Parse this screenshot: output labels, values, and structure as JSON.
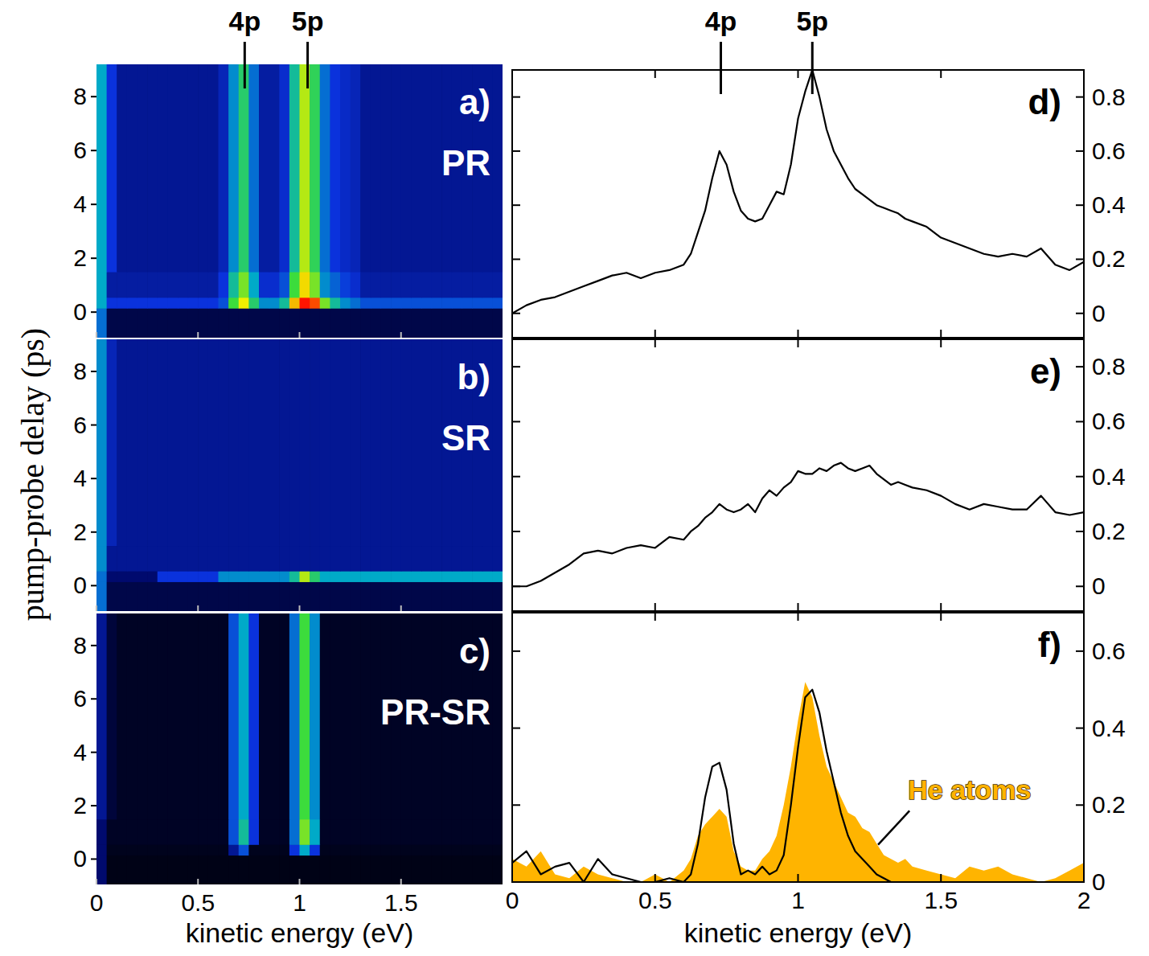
{
  "chart_data": [
    {
      "type": "heatmap",
      "panel_label": "a)",
      "title": "PR",
      "y_label": "pump-probe delay (ps)",
      "markers": [
        {
          "label": "4p",
          "value": 0.73
        },
        {
          "label": "5p",
          "value": 1.04
        }
      ],
      "xlim": [
        0,
        2
      ],
      "ylim": [
        -0.95,
        9.2
      ],
      "xticks": [
        0,
        0.5,
        1,
        1.5
      ],
      "yticks": [
        0,
        2,
        4,
        6,
        8
      ],
      "tick_labels": "y",
      "x_edges": [
        0,
        0.05,
        0.1,
        0.15,
        0.2,
        0.25,
        0.3,
        0.35,
        0.4,
        0.45,
        0.5,
        0.55,
        0.6,
        0.65,
        0.7,
        0.75,
        0.8,
        0.85,
        0.9,
        0.95,
        1,
        1.05,
        1.1,
        1.15,
        1.2,
        1.25,
        1.3,
        1.35,
        1.4,
        1.45,
        1.5,
        1.55,
        1.6,
        1.65,
        1.7,
        1.75,
        1.8,
        1.85,
        1.9,
        1.95,
        2
      ],
      "y_edges": [
        -0.95,
        0.15,
        0.55,
        1.5,
        9.2
      ],
      "zlim": [
        0,
        1
      ],
      "cells": [
        [
          0.4,
          0.1,
          0.1,
          0.1,
          0.1,
          0.1,
          0.1,
          0.1,
          0.1,
          0.1,
          0.1,
          0.1,
          0.1,
          0.1,
          0.1,
          0.1,
          0.1,
          0.1,
          0.1,
          0.1,
          0.1,
          0.1,
          0.1,
          0.1,
          0.1,
          0.1,
          0.1,
          0.1,
          0.1,
          0.1,
          0.1,
          0.1,
          0.1,
          0.1,
          0.1,
          0.1,
          0.1,
          0.1,
          0.1,
          0.1
        ],
        [
          0.5,
          0.3,
          0.3,
          0.3,
          0.3,
          0.3,
          0.3,
          0.3,
          0.3,
          0.3,
          0.3,
          0.3,
          0.35,
          0.65,
          0.8,
          0.6,
          0.45,
          0.45,
          0.55,
          0.85,
          1.0,
          0.95,
          0.7,
          0.55,
          0.45,
          0.4,
          0.35,
          0.35,
          0.35,
          0.35,
          0.35,
          0.35,
          0.35,
          0.35,
          0.35,
          0.35,
          0.35,
          0.35,
          0.35,
          0.35
        ],
        [
          0.5,
          0.22,
          0.22,
          0.22,
          0.22,
          0.22,
          0.22,
          0.22,
          0.22,
          0.22,
          0.22,
          0.22,
          0.3,
          0.55,
          0.7,
          0.5,
          0.28,
          0.28,
          0.35,
          0.65,
          0.82,
          0.7,
          0.45,
          0.38,
          0.32,
          0.28,
          0.22,
          0.22,
          0.22,
          0.22,
          0.22,
          0.22,
          0.22,
          0.22,
          0.22,
          0.22,
          0.22,
          0.22,
          0.22,
          0.22
        ],
        [
          0.5,
          0.3,
          0.2,
          0.2,
          0.2,
          0.2,
          0.2,
          0.2,
          0.2,
          0.2,
          0.2,
          0.2,
          0.25,
          0.45,
          0.6,
          0.4,
          0.22,
          0.22,
          0.28,
          0.55,
          0.75,
          0.62,
          0.4,
          0.3,
          0.27,
          0.25,
          0.2,
          0.2,
          0.2,
          0.2,
          0.2,
          0.2,
          0.2,
          0.2,
          0.2,
          0.2,
          0.2,
          0.2,
          0.2,
          0.2
        ]
      ]
    },
    {
      "type": "heatmap",
      "panel_label": "b)",
      "title": "SR",
      "xlim": [
        0,
        2
      ],
      "ylim": [
        -0.95,
        9.2
      ],
      "xticks": [
        0,
        0.5,
        1,
        1.5
      ],
      "yticks": [
        0,
        2,
        4,
        6,
        8
      ],
      "tick_labels": "y",
      "x_edges": [
        0,
        0.05,
        0.1,
        0.15,
        0.2,
        0.25,
        0.3,
        0.35,
        0.4,
        0.45,
        0.5,
        0.55,
        0.6,
        0.65,
        0.7,
        0.75,
        0.8,
        0.85,
        0.9,
        0.95,
        1,
        1.05,
        1.1,
        1.15,
        1.2,
        1.25,
        1.3,
        1.35,
        1.4,
        1.45,
        1.5,
        1.55,
        1.6,
        1.65,
        1.7,
        1.75,
        1.8,
        1.85,
        1.9,
        1.95,
        2
      ],
      "y_edges": [
        -0.95,
        0.15,
        0.55,
        1.5,
        9.2
      ],
      "zlim": [
        0,
        1
      ],
      "cells": [
        [
          0.4,
          0.1,
          0.1,
          0.1,
          0.1,
          0.1,
          0.1,
          0.1,
          0.1,
          0.1,
          0.1,
          0.1,
          0.1,
          0.1,
          0.1,
          0.1,
          0.1,
          0.1,
          0.1,
          0.1,
          0.1,
          0.1,
          0.1,
          0.1,
          0.1,
          0.1,
          0.1,
          0.1,
          0.1,
          0.1,
          0.1,
          0.1,
          0.1,
          0.1,
          0.1,
          0.1,
          0.1,
          0.1,
          0.1,
          0.1
        ],
        [
          0.4,
          0.15,
          0.15,
          0.15,
          0.15,
          0.15,
          0.3,
          0.3,
          0.3,
          0.3,
          0.3,
          0.3,
          0.45,
          0.45,
          0.45,
          0.45,
          0.45,
          0.45,
          0.45,
          0.55,
          0.75,
          0.6,
          0.5,
          0.5,
          0.5,
          0.5,
          0.5,
          0.5,
          0.5,
          0.5,
          0.5,
          0.5,
          0.5,
          0.5,
          0.5,
          0.5,
          0.5,
          0.5,
          0.5,
          0.5
        ],
        [
          0.45,
          0.2,
          0.2,
          0.2,
          0.2,
          0.2,
          0.2,
          0.2,
          0.2,
          0.2,
          0.2,
          0.2,
          0.2,
          0.2,
          0.2,
          0.2,
          0.2,
          0.2,
          0.2,
          0.2,
          0.2,
          0.2,
          0.2,
          0.2,
          0.2,
          0.2,
          0.2,
          0.2,
          0.2,
          0.2,
          0.2,
          0.2,
          0.2,
          0.2,
          0.2,
          0.2,
          0.2,
          0.2,
          0.2,
          0.2
        ],
        [
          0.45,
          0.25,
          0.2,
          0.2,
          0.2,
          0.2,
          0.2,
          0.2,
          0.2,
          0.2,
          0.2,
          0.2,
          0.2,
          0.2,
          0.2,
          0.2,
          0.2,
          0.2,
          0.2,
          0.2,
          0.2,
          0.2,
          0.2,
          0.2,
          0.2,
          0.2,
          0.2,
          0.2,
          0.2,
          0.2,
          0.2,
          0.2,
          0.2,
          0.2,
          0.2,
          0.2,
          0.2,
          0.2,
          0.2,
          0.2
        ]
      ]
    },
    {
      "type": "heatmap",
      "panel_label": "c)",
      "title": "PR-SR",
      "x_label": "kinetic energy (eV)",
      "xlim": [
        0,
        2
      ],
      "ylim": [
        -0.95,
        9.2
      ],
      "xticks": [
        0,
        0.5,
        1,
        1.5
      ],
      "yticks": [
        0,
        2,
        4,
        6,
        8
      ],
      "tick_labels": true,
      "x_edges": [
        0,
        0.05,
        0.1,
        0.15,
        0.2,
        0.25,
        0.3,
        0.35,
        0.4,
        0.45,
        0.5,
        0.55,
        0.6,
        0.65,
        0.7,
        0.75,
        0.8,
        0.85,
        0.9,
        0.95,
        1,
        1.05,
        1.1,
        1.15,
        1.2,
        1.25,
        1.3,
        1.35,
        1.4,
        1.45,
        1.5,
        1.55,
        1.6,
        1.65,
        1.7,
        1.75,
        1.8,
        1.85,
        1.9,
        1.95,
        2
      ],
      "y_edges": [
        -0.95,
        0.15,
        0.55,
        1.5,
        9.2
      ],
      "zlim": [
        0,
        1
      ],
      "cells": [
        [
          0.15,
          0.03,
          0.03,
          0.03,
          0.03,
          0.03,
          0.03,
          0.03,
          0.03,
          0.03,
          0.03,
          0.03,
          0.03,
          0.03,
          0.03,
          0.03,
          0.03,
          0.03,
          0.03,
          0.03,
          0.03,
          0.03,
          0.03,
          0.03,
          0.03,
          0.03,
          0.03,
          0.03,
          0.03,
          0.03,
          0.03,
          0.03,
          0.03,
          0.03,
          0.03,
          0.03,
          0.03,
          0.03,
          0.03,
          0.03
        ],
        [
          0.15,
          0.04,
          0.04,
          0.04,
          0.04,
          0.04,
          0.04,
          0.04,
          0.04,
          0.04,
          0.04,
          0.04,
          0.04,
          0.2,
          0.35,
          0.04,
          0.04,
          0.04,
          0.04,
          0.3,
          0.5,
          0.3,
          0.04,
          0.04,
          0.04,
          0.04,
          0.04,
          0.04,
          0.04,
          0.04,
          0.04,
          0.04,
          0.04,
          0.04,
          0.04,
          0.04,
          0.04,
          0.04,
          0.04,
          0.04
        ],
        [
          0.15,
          0.05,
          0.05,
          0.05,
          0.05,
          0.05,
          0.05,
          0.05,
          0.05,
          0.05,
          0.05,
          0.05,
          0.05,
          0.35,
          0.55,
          0.3,
          0.05,
          0.05,
          0.05,
          0.4,
          0.7,
          0.5,
          0.05,
          0.05,
          0.05,
          0.05,
          0.05,
          0.05,
          0.05,
          0.05,
          0.05,
          0.05,
          0.05,
          0.05,
          0.05,
          0.05,
          0.05,
          0.05,
          0.05,
          0.05
        ],
        [
          0.2,
          0.08,
          0.05,
          0.05,
          0.05,
          0.05,
          0.05,
          0.05,
          0.05,
          0.05,
          0.05,
          0.05,
          0.05,
          0.35,
          0.5,
          0.3,
          0.05,
          0.05,
          0.05,
          0.4,
          0.65,
          0.45,
          0.05,
          0.05,
          0.05,
          0.05,
          0.05,
          0.05,
          0.05,
          0.05,
          0.05,
          0.05,
          0.05,
          0.05,
          0.05,
          0.05,
          0.05,
          0.05,
          0.05,
          0.05
        ]
      ]
    },
    {
      "type": "line",
      "panel_label": "d)",
      "markers": [
        {
          "label": "4p",
          "value": 0.73
        },
        {
          "label": "5p",
          "value": 1.05
        }
      ],
      "xlim": [
        0,
        2
      ],
      "ylim": [
        -0.09,
        0.9
      ],
      "xticks": [
        0,
        0.5,
        1,
        1.5,
        2
      ],
      "yticks": [
        0,
        0.2,
        0.4,
        0.6,
        0.8
      ],
      "tick_labels": "y",
      "x": [
        0,
        0.05,
        0.1,
        0.15,
        0.2,
        0.25,
        0.3,
        0.35,
        0.4,
        0.45,
        0.5,
        0.55,
        0.6,
        0.625,
        0.65,
        0.675,
        0.7,
        0.725,
        0.75,
        0.775,
        0.8,
        0.825,
        0.85,
        0.875,
        0.9,
        0.925,
        0.95,
        0.975,
        1,
        1.025,
        1.05,
        1.075,
        1.1,
        1.125,
        1.15,
        1.175,
        1.2,
        1.225,
        1.25,
        1.275,
        1.3,
        1.325,
        1.35,
        1.375,
        1.4,
        1.45,
        1.5,
        1.55,
        1.6,
        1.65,
        1.7,
        1.75,
        1.8,
        1.85,
        1.9,
        1.95,
        2
      ],
      "series": [
        {
          "color": "#000000",
          "values": [
            0,
            0.03,
            0.05,
            0.06,
            0.08,
            0.1,
            0.12,
            0.14,
            0.15,
            0.13,
            0.15,
            0.16,
            0.18,
            0.22,
            0.3,
            0.38,
            0.5,
            0.6,
            0.55,
            0.45,
            0.38,
            0.35,
            0.34,
            0.35,
            0.4,
            0.45,
            0.44,
            0.55,
            0.72,
            0.82,
            0.9,
            0.8,
            0.68,
            0.6,
            0.55,
            0.5,
            0.46,
            0.44,
            0.42,
            0.4,
            0.39,
            0.38,
            0.37,
            0.35,
            0.34,
            0.32,
            0.28,
            0.26,
            0.24,
            0.22,
            0.21,
            0.22,
            0.21,
            0.24,
            0.18,
            0.16,
            0.19
          ]
        }
      ]
    },
    {
      "type": "line",
      "panel_label": "e)",
      "xlim": [
        0,
        2
      ],
      "ylim": [
        -0.09,
        0.9
      ],
      "xticks": [
        0,
        0.5,
        1,
        1.5,
        2
      ],
      "yticks": [
        0,
        0.2,
        0.4,
        0.6,
        0.8
      ],
      "tick_labels": "y",
      "x": [
        0,
        0.05,
        0.1,
        0.15,
        0.2,
        0.25,
        0.3,
        0.35,
        0.4,
        0.45,
        0.5,
        0.55,
        0.6,
        0.625,
        0.65,
        0.675,
        0.7,
        0.725,
        0.75,
        0.775,
        0.8,
        0.825,
        0.85,
        0.875,
        0.9,
        0.925,
        0.95,
        0.975,
        1,
        1.025,
        1.05,
        1.075,
        1.1,
        1.125,
        1.15,
        1.175,
        1.2,
        1.225,
        1.25,
        1.275,
        1.3,
        1.325,
        1.35,
        1.375,
        1.4,
        1.45,
        1.5,
        1.55,
        1.6,
        1.65,
        1.7,
        1.75,
        1.8,
        1.85,
        1.9,
        1.95,
        2
      ],
      "series": [
        {
          "color": "#000000",
          "values": [
            0,
            0,
            0.02,
            0.05,
            0.08,
            0.12,
            0.13,
            0.12,
            0.14,
            0.15,
            0.14,
            0.18,
            0.17,
            0.2,
            0.22,
            0.25,
            0.27,
            0.3,
            0.28,
            0.27,
            0.28,
            0.3,
            0.27,
            0.32,
            0.35,
            0.33,
            0.36,
            0.38,
            0.42,
            0.41,
            0.41,
            0.43,
            0.42,
            0.44,
            0.45,
            0.43,
            0.42,
            0.43,
            0.44,
            0.41,
            0.39,
            0.37,
            0.38,
            0.37,
            0.36,
            0.35,
            0.33,
            0.3,
            0.28,
            0.3,
            0.29,
            0.28,
            0.28,
            0.33,
            0.27,
            0.26,
            0.27
          ]
        }
      ]
    },
    {
      "type": "line",
      "panel_label": "f)",
      "x_label": "kinetic energy (eV)",
      "xlim": [
        0,
        2
      ],
      "ylim": [
        0,
        0.7
      ],
      "xticks": [
        0,
        0.5,
        1,
        1.5,
        2
      ],
      "yticks": [
        0,
        0.2,
        0.4,
        0.6
      ],
      "tick_labels": true,
      "x": [
        0,
        0.05,
        0.1,
        0.15,
        0.2,
        0.25,
        0.3,
        0.35,
        0.4,
        0.45,
        0.5,
        0.55,
        0.6,
        0.625,
        0.65,
        0.675,
        0.7,
        0.725,
        0.75,
        0.775,
        0.8,
        0.825,
        0.85,
        0.875,
        0.9,
        0.925,
        0.95,
        0.975,
        1,
        1.025,
        1.05,
        1.075,
        1.1,
        1.125,
        1.15,
        1.175,
        1.2,
        1.225,
        1.25,
        1.275,
        1.3,
        1.325,
        1.35,
        1.375,
        1.4,
        1.45,
        1.5,
        1.55,
        1.6,
        1.65,
        1.7,
        1.75,
        1.8,
        1.85,
        1.9,
        1.95,
        2
      ],
      "series": [
        {
          "name": "He atoms",
          "type": "area",
          "color": "#ffb400",
          "values": [
            0.06,
            0.04,
            0.08,
            0.02,
            0.01,
            0.04,
            0.02,
            0.01,
            0,
            0,
            0.02,
            0,
            0.03,
            0.06,
            0.12,
            0.15,
            0.17,
            0.19,
            0.17,
            0.08,
            0.04,
            0.03,
            0.03,
            0.06,
            0.08,
            0.12,
            0.2,
            0.3,
            0.42,
            0.52,
            0.48,
            0.38,
            0.3,
            0.26,
            0.22,
            0.18,
            0.17,
            0.14,
            0.13,
            0.1,
            0.07,
            0.06,
            0.05,
            0.06,
            0.04,
            0.03,
            0.02,
            0.01,
            0.04,
            0.03,
            0.04,
            0.02,
            0.01,
            0,
            0.01,
            0.03,
            0.05
          ]
        },
        {
          "type": "line",
          "color": "#000000",
          "values": [
            0.05,
            0.08,
            0.02,
            0.04,
            0.05,
            0,
            0.06,
            0.02,
            0.01,
            0,
            0,
            0.01,
            0,
            0.02,
            0.1,
            0.22,
            0.3,
            0.31,
            0.24,
            0.1,
            0.02,
            0.03,
            0.02,
            0.04,
            0.02,
            0.03,
            0.07,
            0.2,
            0.35,
            0.48,
            0.5,
            0.44,
            0.34,
            0.26,
            0.18,
            0.12,
            0.08,
            0.06,
            0.04,
            0.02,
            0.01,
            0,
            0,
            0,
            0,
            0,
            0,
            0,
            0,
            0,
            0,
            0,
            0,
            0,
            0,
            0,
            0
          ]
        }
      ]
    }
  ]
}
